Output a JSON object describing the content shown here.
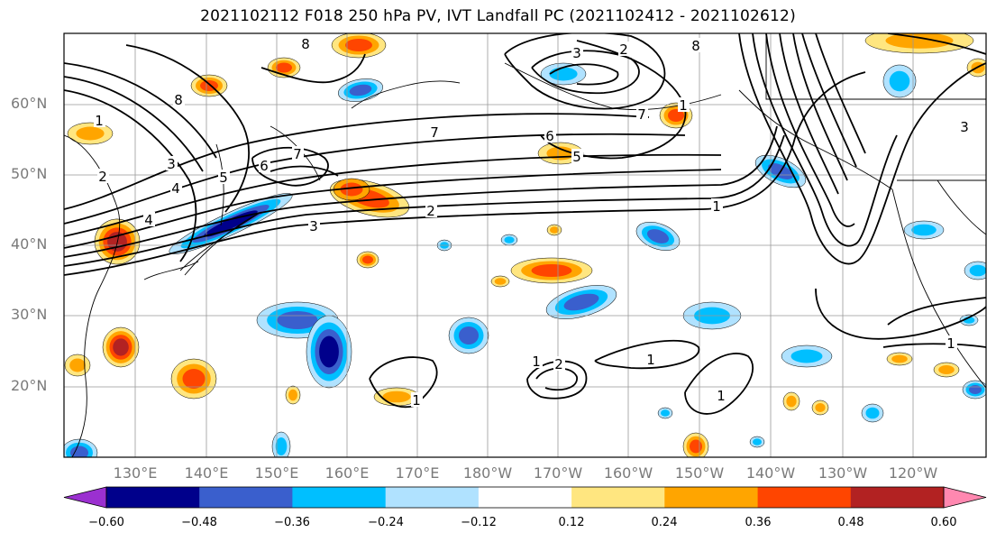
{
  "title": "2021102112 F018 250 hPa PV, IVT Landfall PC (2021102412 - 2021102612)",
  "axes": {
    "lat_labels": [
      "60°N",
      "50°N",
      "40°N",
      "30°N",
      "20°N"
    ],
    "lon_labels": [
      "130°E",
      "140°E",
      "150°E",
      "160°E",
      "170°E",
      "180°W",
      "170°W",
      "160°W",
      "150°W",
      "140°W",
      "130°W",
      "120°W"
    ]
  },
  "colorbar": {
    "ticks": [
      "−0.60",
      "−0.48",
      "−0.36",
      "−0.24",
      "−0.12",
      "0.12",
      "0.24",
      "0.36",
      "0.48",
      "0.60"
    ],
    "colors": [
      "#9b30d0",
      "#00008b",
      "#3a5fcd",
      "#00bfff",
      "#b0e2ff",
      "#ffffff",
      "#ffe680",
      "#ffa500",
      "#ff4500",
      "#b22222",
      "#ff88b0"
    ]
  },
  "contour_labels": [
    "8",
    "1",
    "2",
    "3",
    "4",
    "5",
    "6",
    "7",
    "8",
    "6",
    "5",
    "7",
    "4",
    "2",
    "3",
    "1",
    "8",
    "2",
    "3",
    "7",
    "1",
    "3",
    "1",
    "2",
    "1",
    "1",
    "1",
    "1"
  ]
}
